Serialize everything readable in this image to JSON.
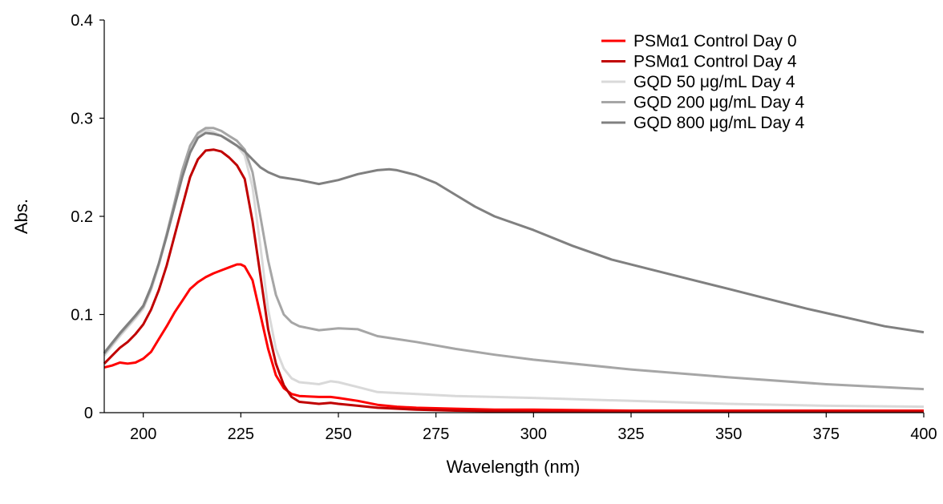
{
  "chart_data": {
    "type": "line",
    "title": "",
    "xlabel": "Wavelength (nm)",
    "ylabel": "Abs.",
    "xlim": [
      190,
      400
    ],
    "ylim": [
      0,
      0.4
    ],
    "x_ticks": [
      200,
      225,
      250,
      275,
      300,
      325,
      350,
      375,
      400
    ],
    "y_ticks": [
      0,
      0.1,
      0.2,
      0.3,
      0.4
    ],
    "y_tick_labels": [
      "0",
      "0.1",
      "0.2",
      "0.3",
      "0.4"
    ],
    "grid": false,
    "legend_position": "top-right",
    "series": [
      {
        "name": "PSMα1  Control Day 0",
        "color": "#ff0000",
        "points": [
          [
            190,
            0.046
          ],
          [
            192,
            0.048
          ],
          [
            194,
            0.051
          ],
          [
            196,
            0.05
          ],
          [
            198,
            0.051
          ],
          [
            200,
            0.055
          ],
          [
            202,
            0.062
          ],
          [
            204,
            0.075
          ],
          [
            206,
            0.088
          ],
          [
            208,
            0.102
          ],
          [
            210,
            0.114
          ],
          [
            212,
            0.126
          ],
          [
            214,
            0.133
          ],
          [
            216,
            0.138
          ],
          [
            218,
            0.142
          ],
          [
            220,
            0.145
          ],
          [
            222,
            0.148
          ],
          [
            224,
            0.151
          ],
          [
            225,
            0.151
          ],
          [
            226,
            0.149
          ],
          [
            228,
            0.135
          ],
          [
            230,
            0.1
          ],
          [
            232,
            0.065
          ],
          [
            234,
            0.038
          ],
          [
            236,
            0.025
          ],
          [
            238,
            0.019
          ],
          [
            240,
            0.017
          ],
          [
            245,
            0.016
          ],
          [
            248,
            0.016
          ],
          [
            250,
            0.015
          ],
          [
            255,
            0.012
          ],
          [
            260,
            0.008
          ],
          [
            265,
            0.006
          ],
          [
            270,
            0.005
          ],
          [
            280,
            0.004
          ],
          [
            290,
            0.003
          ],
          [
            300,
            0.003
          ],
          [
            325,
            0.002
          ],
          [
            350,
            0.002
          ],
          [
            375,
            0.002
          ],
          [
            400,
            0.002
          ]
        ]
      },
      {
        "name": "PSMα1  Control Day 4",
        "color": "#c00000",
        "points": [
          [
            190,
            0.05
          ],
          [
            192,
            0.058
          ],
          [
            194,
            0.066
          ],
          [
            196,
            0.072
          ],
          [
            198,
            0.08
          ],
          [
            200,
            0.09
          ],
          [
            202,
            0.105
          ],
          [
            204,
            0.125
          ],
          [
            206,
            0.15
          ],
          [
            208,
            0.18
          ],
          [
            210,
            0.21
          ],
          [
            212,
            0.24
          ],
          [
            214,
            0.258
          ],
          [
            216,
            0.267
          ],
          [
            218,
            0.268
          ],
          [
            220,
            0.266
          ],
          [
            222,
            0.26
          ],
          [
            224,
            0.252
          ],
          [
            226,
            0.238
          ],
          [
            228,
            0.195
          ],
          [
            230,
            0.14
          ],
          [
            232,
            0.085
          ],
          [
            234,
            0.05
          ],
          [
            236,
            0.028
          ],
          [
            238,
            0.016
          ],
          [
            240,
            0.011
          ],
          [
            245,
            0.009
          ],
          [
            248,
            0.01
          ],
          [
            250,
            0.009
          ],
          [
            255,
            0.007
          ],
          [
            260,
            0.005
          ],
          [
            270,
            0.003
          ],
          [
            280,
            0.002
          ],
          [
            300,
            0.001
          ],
          [
            325,
            0.001
          ],
          [
            350,
            0.001
          ],
          [
            375,
            0.001
          ],
          [
            400,
            0.001
          ]
        ]
      },
      {
        "name": "GQD   50 μg/mL Day 4",
        "color": "#d9d9d9",
        "points": [
          [
            190,
            0.058
          ],
          [
            192,
            0.068
          ],
          [
            194,
            0.078
          ],
          [
            196,
            0.087
          ],
          [
            198,
            0.096
          ],
          [
            200,
            0.106
          ],
          [
            202,
            0.125
          ],
          [
            204,
            0.15
          ],
          [
            206,
            0.18
          ],
          [
            208,
            0.212
          ],
          [
            210,
            0.245
          ],
          [
            212,
            0.27
          ],
          [
            214,
            0.283
          ],
          [
            216,
            0.288
          ],
          [
            218,
            0.286
          ],
          [
            220,
            0.282
          ],
          [
            222,
            0.278
          ],
          [
            224,
            0.272
          ],
          [
            226,
            0.262
          ],
          [
            228,
            0.23
          ],
          [
            230,
            0.17
          ],
          [
            232,
            0.105
          ],
          [
            234,
            0.065
          ],
          [
            236,
            0.045
          ],
          [
            238,
            0.035
          ],
          [
            240,
            0.031
          ],
          [
            245,
            0.029
          ],
          [
            248,
            0.032
          ],
          [
            250,
            0.031
          ],
          [
            255,
            0.026
          ],
          [
            260,
            0.021
          ],
          [
            270,
            0.019
          ],
          [
            280,
            0.017
          ],
          [
            290,
            0.016
          ],
          [
            300,
            0.015
          ],
          [
            325,
            0.012
          ],
          [
            350,
            0.009
          ],
          [
            375,
            0.007
          ],
          [
            400,
            0.006
          ]
        ]
      },
      {
        "name": "GQD 200 μg/mL Day 4",
        "color": "#a6a6a6",
        "points": [
          [
            190,
            0.06
          ],
          [
            192,
            0.07
          ],
          [
            194,
            0.08
          ],
          [
            196,
            0.089
          ],
          [
            198,
            0.098
          ],
          [
            200,
            0.108
          ],
          [
            202,
            0.127
          ],
          [
            204,
            0.152
          ],
          [
            206,
            0.182
          ],
          [
            208,
            0.214
          ],
          [
            210,
            0.247
          ],
          [
            212,
            0.272
          ],
          [
            214,
            0.285
          ],
          [
            216,
            0.29
          ],
          [
            218,
            0.29
          ],
          [
            220,
            0.287
          ],
          [
            222,
            0.282
          ],
          [
            224,
            0.277
          ],
          [
            226,
            0.268
          ],
          [
            228,
            0.245
          ],
          [
            230,
            0.2
          ],
          [
            232,
            0.155
          ],
          [
            234,
            0.12
          ],
          [
            236,
            0.1
          ],
          [
            238,
            0.092
          ],
          [
            240,
            0.088
          ],
          [
            245,
            0.084
          ],
          [
            250,
            0.086
          ],
          [
            255,
            0.085
          ],
          [
            260,
            0.078
          ],
          [
            270,
            0.072
          ],
          [
            280,
            0.065
          ],
          [
            290,
            0.059
          ],
          [
            300,
            0.054
          ],
          [
            325,
            0.044
          ],
          [
            350,
            0.036
          ],
          [
            375,
            0.029
          ],
          [
            400,
            0.024
          ]
        ]
      },
      {
        "name": "GQD 800 μg/mL Day 4",
        "color": "#808080",
        "points": [
          [
            190,
            0.061
          ],
          [
            192,
            0.071
          ],
          [
            194,
            0.081
          ],
          [
            196,
            0.09
          ],
          [
            198,
            0.099
          ],
          [
            200,
            0.109
          ],
          [
            202,
            0.128
          ],
          [
            204,
            0.152
          ],
          [
            206,
            0.18
          ],
          [
            208,
            0.21
          ],
          [
            210,
            0.24
          ],
          [
            212,
            0.265
          ],
          [
            214,
            0.28
          ],
          [
            216,
            0.285
          ],
          [
            218,
            0.284
          ],
          [
            220,
            0.282
          ],
          [
            222,
            0.277
          ],
          [
            224,
            0.272
          ],
          [
            226,
            0.266
          ],
          [
            228,
            0.258
          ],
          [
            230,
            0.25
          ],
          [
            232,
            0.245
          ],
          [
            235,
            0.24
          ],
          [
            240,
            0.237
          ],
          [
            245,
            0.233
          ],
          [
            250,
            0.237
          ],
          [
            255,
            0.243
          ],
          [
            260,
            0.247
          ],
          [
            263,
            0.248
          ],
          [
            265,
            0.247
          ],
          [
            270,
            0.242
          ],
          [
            275,
            0.234
          ],
          [
            280,
            0.222
          ],
          [
            285,
            0.21
          ],
          [
            290,
            0.2
          ],
          [
            300,
            0.186
          ],
          [
            310,
            0.17
          ],
          [
            320,
            0.156
          ],
          [
            330,
            0.146
          ],
          [
            340,
            0.136
          ],
          [
            350,
            0.126
          ],
          [
            360,
            0.116
          ],
          [
            370,
            0.106
          ],
          [
            380,
            0.097
          ],
          [
            390,
            0.088
          ],
          [
            400,
            0.082
          ]
        ]
      }
    ]
  }
}
